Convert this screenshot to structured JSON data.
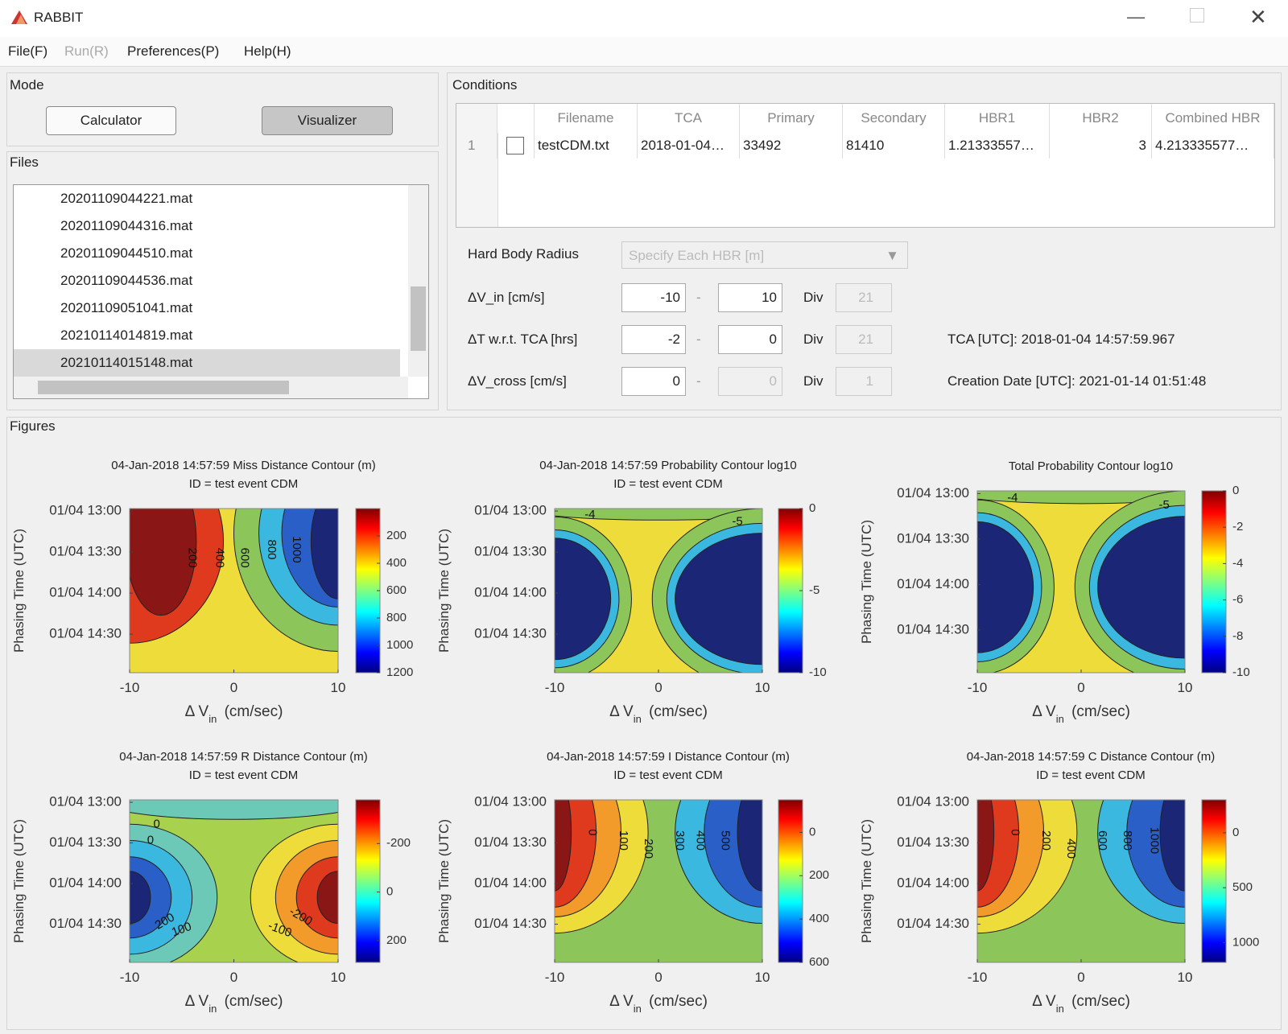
{
  "window": {
    "title": "RABBIT",
    "menu": [
      "File(F)",
      "Run(R)",
      "Preferences(P)",
      "Help(H)"
    ]
  },
  "mode": {
    "label": "Mode",
    "buttons": [
      "Calculator",
      "Visualizer"
    ]
  },
  "files": {
    "label": "Files",
    "items": [
      "20201109044221.mat",
      "20201109044316.mat",
      "20201109044510.mat",
      "20201109044536.mat",
      "20201109051041.mat",
      "20210114014819.mat",
      "20210114015148.mat"
    ]
  },
  "conditions": {
    "label": "Conditions",
    "table": {
      "columns": [
        "Filename",
        "TCA",
        "Primary",
        "Secondary",
        "HBR1",
        "HBR2",
        "Combined HBR"
      ],
      "rows": [
        {
          "index": "1",
          "cells": [
            "testCDM.txt",
            "2018-01-04…",
            "33492",
            "81410",
            "1.21333557…",
            "3",
            "4.213335577…"
          ]
        }
      ]
    },
    "hbr": {
      "label": "Hard Body Radius",
      "value": "Specify Each HBR [m]"
    },
    "ranges": [
      {
        "label": "ΔV_in [cm/s]",
        "from": "-10",
        "dash": "-",
        "to": "10",
        "div_label": "Div",
        "div": "21"
      },
      {
        "label": "ΔT w.r.t. TCA [hrs]",
        "from": "-2",
        "dash": "-",
        "to": "0",
        "div_label": "Div",
        "div": "21"
      },
      {
        "label": "ΔV_cross [cm/s]",
        "from": "0",
        "dash": "-",
        "to": "0",
        "div_label": "Div",
        "div": "1"
      }
    ],
    "info": [
      "TCA [UTC]: 2018-01-04 14:57:59.967",
      "Creation Date [UTC]: 2021-01-14 01:51:48"
    ]
  },
  "figures": {
    "label": "Figures",
    "plots": [
      {
        "title": [
          "04-Jan-2018 14:57:59 Miss Distance Contour (m)",
          "ID = test event CDM"
        ],
        "ylabel": "Phasing Time (UTC)",
        "xlabel": {
          "main": "Δ V",
          "sub": "in",
          "unit": "(cm/sec)"
        },
        "xlim": [
          -10,
          10
        ],
        "xticks": [
          -10,
          0,
          10
        ],
        "ylim": [
          -2,
          0
        ],
        "yticks": [
          {
            "value": -1.97,
            "label": "01/04 13:00"
          },
          {
            "value": -1.47,
            "label": "01/04 13:30"
          },
          {
            "value": -0.97,
            "label": "01/04 14:00"
          },
          {
            "value": -0.47,
            "label": "01/04 14:30"
          }
        ],
        "clim": [
          0,
          1200
        ],
        "cticks": [
          200,
          400,
          600,
          800,
          1000,
          1200
        ],
        "contour_labels": [
          "200",
          "400",
          "600",
          "800",
          "1000"
        ]
      },
      {
        "title": [
          "04-Jan-2018 14:57:59 Probability Contour log10",
          "ID = test event CDM"
        ],
        "ylabel": "Phasing Time (UTC)",
        "xlabel": {
          "main": "Δ V",
          "sub": "in",
          "unit": "(cm/sec)"
        },
        "xlim": [
          -10,
          10
        ],
        "xticks": [
          -10,
          0,
          10
        ],
        "ylim": [
          -2,
          0
        ],
        "yticks": [
          {
            "value": -1.97,
            "label": "01/04 13:00"
          },
          {
            "value": -1.47,
            "label": "01/04 13:30"
          },
          {
            "value": -0.97,
            "label": "01/04 14:00"
          },
          {
            "value": -0.47,
            "label": "01/04 14:30"
          }
        ],
        "clim": [
          0,
          -10
        ],
        "cticks": [
          0,
          -5,
          -10
        ],
        "contour_labels": [
          "-4",
          "-5"
        ]
      },
      {
        "title": [
          "Total Probability Contour log10"
        ],
        "ylabel": "Phasing Time (UTC)",
        "xlabel": {
          "main": "Δ V",
          "sub": "in",
          "unit": "(cm/sec)"
        },
        "xlim": [
          -10,
          10
        ],
        "xticks": [
          -10,
          0,
          10
        ],
        "ylim": [
          -2,
          0
        ],
        "yticks": [
          {
            "value": -1.97,
            "label": "01/04 13:00"
          },
          {
            "value": -1.47,
            "label": "01/04 13:30"
          },
          {
            "value": -0.97,
            "label": "01/04 14:00"
          },
          {
            "value": -0.47,
            "label": "01/04 14:30"
          }
        ],
        "clim": [
          0,
          -10
        ],
        "cticks": [
          0,
          -2,
          -4,
          -6,
          -8,
          -10
        ],
        "contour_labels": [
          "-4",
          "-5"
        ]
      },
      {
        "title": [
          "04-Jan-2018 14:57:59 R Distance Contour (m)",
          "ID = test event CDM"
        ],
        "ylabel": "Phasing Time (UTC)",
        "xlabel": {
          "main": "Δ V",
          "sub": "in",
          "unit": "(cm/sec)"
        },
        "xlim": [
          -10,
          10
        ],
        "xticks": [
          -10,
          0,
          10
        ],
        "ylim": [
          -2,
          0
        ],
        "yticks": [
          {
            "value": -1.97,
            "label": "01/04 13:00"
          },
          {
            "value": -1.47,
            "label": "01/04 13:30"
          },
          {
            "value": -0.97,
            "label": "01/04 14:00"
          },
          {
            "value": -0.47,
            "label": "01/04 14:30"
          }
        ],
        "clim": [
          -380,
          290
        ],
        "cticks": [
          -200,
          0,
          200
        ],
        "contour_labels": [
          "0",
          "0",
          "200",
          "100",
          "-100",
          "-200"
        ]
      },
      {
        "title": [
          "04-Jan-2018 14:57:59 I Distance Contour (m)",
          "ID = test event CDM"
        ],
        "ylabel": "Phasing Time (UTC)",
        "xlabel": {
          "main": "Δ V",
          "sub": "in",
          "unit": "(cm/sec)"
        },
        "xlim": [
          -10,
          10
        ],
        "xticks": [
          -10,
          0,
          10
        ],
        "ylim": [
          -2,
          0
        ],
        "yticks": [
          {
            "value": -1.97,
            "label": "01/04 13:00"
          },
          {
            "value": -1.47,
            "label": "01/04 13:30"
          },
          {
            "value": -0.97,
            "label": "01/04 14:00"
          },
          {
            "value": -0.47,
            "label": "01/04 14:30"
          }
        ],
        "clim": [
          -150,
          600
        ],
        "cticks": [
          0,
          200,
          400,
          600
        ],
        "contour_labels": [
          "0",
          "100",
          "200",
          "300",
          "400",
          "500"
        ]
      },
      {
        "title": [
          "04-Jan-2018 14:57:59 C Distance Contour (m)",
          "ID = test event CDM"
        ],
        "ylabel": "Phasing Time (UTC)",
        "xlabel": {
          "main": "Δ V",
          "sub": "in",
          "unit": "(cm/sec)"
        },
        "xlim": [
          -10,
          10
        ],
        "xticks": [
          -10,
          0,
          10
        ],
        "ylim": [
          -2,
          0
        ],
        "yticks": [
          {
            "value": -1.97,
            "label": "01/04 13:00"
          },
          {
            "value": -1.47,
            "label": "01/04 13:30"
          },
          {
            "value": -0.97,
            "label": "01/04 14:00"
          },
          {
            "value": -0.47,
            "label": "01/04 14:30"
          }
        ],
        "clim": [
          -300,
          1180
        ],
        "cticks": [
          0,
          500,
          1000
        ],
        "contour_labels": [
          "0",
          "200",
          "400",
          "600",
          "800",
          "1000"
        ]
      }
    ]
  }
}
